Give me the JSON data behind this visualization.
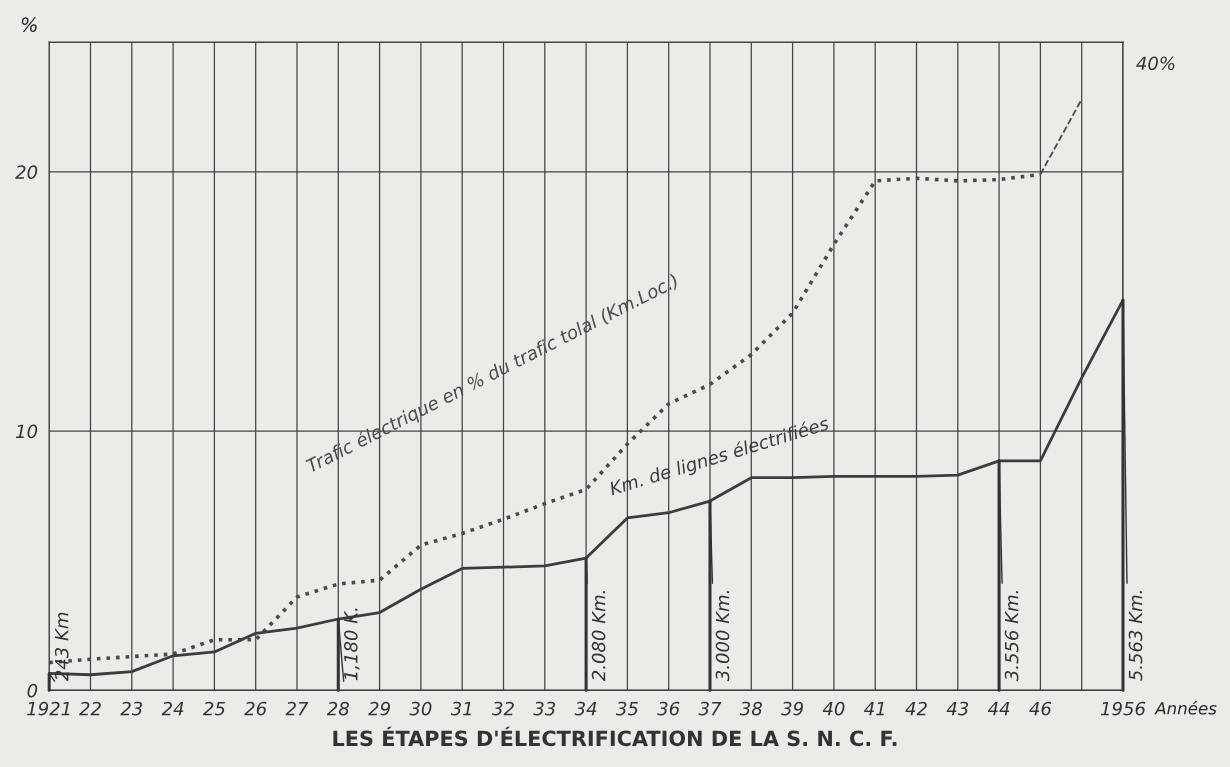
{
  "chart_data": {
    "type": "line",
    "title": "LES ÉTAPES D'ÉLECTRIFICATION DE LA S. N. C. F.",
    "xlabel": "Années",
    "ylabel": "%",
    "categories": [
      "1921",
      "22",
      "23",
      "24",
      "25",
      "26",
      "27",
      "28",
      "29",
      "30",
      "31",
      "32",
      "33",
      "34",
      "35",
      "36",
      "37",
      "38",
      "39",
      "40",
      "41",
      "42",
      "43",
      "44",
      "46",
      null,
      "1956"
    ],
    "series": [
      {
        "name": "Trafic électrique en % du trafic tolal (Km.Loc.)",
        "color": "#4a4a4a",
        "line_style": "dotted",
        "values": [
          1.07,
          1.2,
          1.3,
          1.4,
          1.95,
          1.95,
          3.6,
          4.1,
          4.25,
          5.6,
          6.05,
          6.6,
          7.2,
          7.75,
          9.5,
          11.05,
          11.8,
          12.95,
          14.55,
          17.2,
          19.65,
          19.75,
          19.65,
          19.7,
          19.9,
          null,
          null
        ]
      },
      {
        "name": "Km. de lignes électrifiées",
        "color": "#3c3c3c",
        "line_style": "solid",
        "values": [
          0.65,
          0.6,
          0.72,
          1.33,
          1.48,
          2.2,
          2.4,
          2.75,
          3.0,
          3.9,
          4.7,
          4.75,
          4.8,
          5.1,
          6.65,
          6.85,
          7.3,
          8.2,
          8.2,
          8.25,
          8.25,
          8.25,
          8.3,
          8.85,
          8.85,
          12.05,
          15.05
        ]
      },
      {
        "type": "line",
        "color": "#4a4a4a",
        "line_style": "dashed",
        "values": [
          null,
          null,
          null,
          null,
          null,
          null,
          null,
          null,
          null,
          null,
          null,
          null,
          null,
          null,
          null,
          null,
          null,
          null,
          null,
          null,
          null,
          null,
          null,
          null,
          19.9,
          22.8,
          null
        ]
      }
    ],
    "ylim": [
      0,
      25
    ],
    "yticks": [
      0,
      10,
      20
    ],
    "grid": true,
    "legend": false,
    "marker": "none",
    "annotations": [
      {
        "text": "243 Km",
        "x": "1921",
        "y": 0.65
      },
      {
        "text": "1,180 K.",
        "x": "28",
        "y": 2.75
      },
      {
        "text": "2.080 Km.",
        "x": "34",
        "y": 5.1
      },
      {
        "text": "3.000 Km.",
        "x": "37",
        "y": 7.3
      },
      {
        "text": "3.556 Km.",
        "x": "44",
        "y": 8.85
      },
      {
        "text": "5.563 Km.",
        "x": "1956",
        "y": 15.05
      },
      "40%"
    ]
  }
}
